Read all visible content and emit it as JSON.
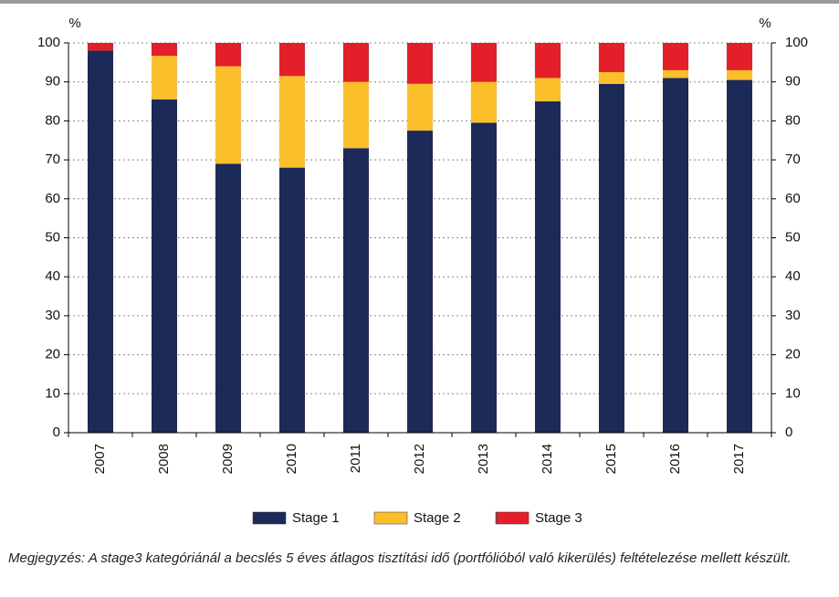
{
  "chart_data": {
    "type": "stacked_bar",
    "ylabel": "%",
    "y2label": "%",
    "categories": [
      "2007",
      "2008",
      "2009",
      "2010",
      "2011",
      "2012",
      "2013",
      "2014",
      "2015",
      "2016",
      "2017"
    ],
    "series": [
      {
        "name": "Stage 1",
        "color": "#1b2a58",
        "values": [
          98,
          85.5,
          69,
          68,
          73,
          77.5,
          79.5,
          85,
          89.5,
          91,
          90.5
        ]
      },
      {
        "name": "Stage 2",
        "color": "#fcbf2c",
        "values": [
          0,
          11.2,
          25,
          23.5,
          17,
          12,
          10.5,
          6,
          3,
          2,
          2.5
        ]
      },
      {
        "name": "Stage 3",
        "color": "#e3202a",
        "values": [
          2,
          3.3,
          6,
          8.5,
          10,
          10.5,
          10,
          9,
          7.5,
          7,
          7
        ]
      }
    ],
    "ylim": [
      0,
      100
    ],
    "yticks": [
      0,
      10,
      20,
      30,
      40,
      50,
      60,
      70,
      80,
      90,
      100
    ],
    "y2lim": [
      0,
      100
    ],
    "y2ticks": [
      0,
      10,
      20,
      30,
      40,
      50,
      60,
      70,
      80,
      90,
      100
    ],
    "grid": true
  },
  "note": "Megjegyzés: A stage3 kategóriánál a becslés 5 éves átlagos tisztítási idő (portfólióból való kikerülés) feltételezése mellett készült."
}
